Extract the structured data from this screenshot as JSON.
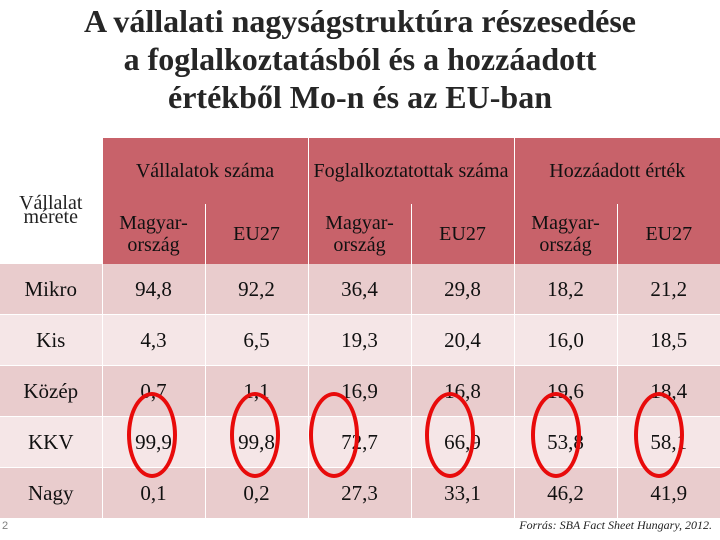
{
  "title": {
    "line1": "A vállalati nagyságstruktúra részesedése",
    "line2": "a foglalkoztatásból és a hozzáadott",
    "line3": "értékből Mo-n és az EU-ban"
  },
  "table": {
    "corner_label_1": "Vállalat",
    "corner_label_2": "mérete",
    "group_headers": [
      "Vállalatok száma",
      "Foglalkoztatottak száma",
      "Hozzáadott érték"
    ],
    "sub_headers": [
      {
        "line1": "Magyar-",
        "line2": "ország"
      },
      {
        "line1": "EU27",
        "line2": ""
      },
      {
        "line1": "Magyar-",
        "line2": "ország"
      },
      {
        "line1": "EU27",
        "line2": ""
      },
      {
        "line1": "Magyar-",
        "line2": "ország"
      },
      {
        "line1": "EU27",
        "line2": ""
      }
    ],
    "rows": [
      {
        "label": "Mikro",
        "values": [
          "94,8",
          "92,2",
          "36,4",
          "29,8",
          "18,2",
          "21,2"
        ]
      },
      {
        "label": "Kis",
        "values": [
          "4,3",
          "6,5",
          "19,3",
          "20,4",
          "16,0",
          "18,5"
        ]
      },
      {
        "label": "Közép",
        "values": [
          "0,7",
          "1,1",
          "16,9",
          "16,8",
          "19,6",
          "18,4"
        ]
      },
      {
        "label": "KKV",
        "values": [
          "99,9",
          "99,8",
          "72,7",
          "66,9",
          "53,8",
          "58,1"
        ]
      },
      {
        "label": "Nagy",
        "values": [
          "0,1",
          "0,2",
          "27,3",
          "33,1",
          "46,2",
          "41,9"
        ]
      }
    ]
  },
  "colors": {
    "header_bg": "#c8626a",
    "row_dark": "#e9cccd",
    "row_light": "#f5e6e7",
    "highlight_circle": "#e80b0b"
  },
  "page_number": "2",
  "source": "Forrás: SBA Fact Sheet Hungary, 2012."
}
